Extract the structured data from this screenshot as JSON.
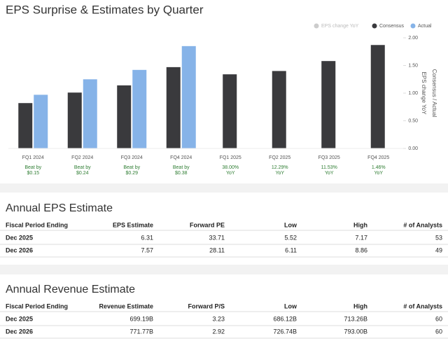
{
  "chart_data": {
    "type": "bar",
    "title": "EPS Surprise & Estimates by Quarter",
    "categories": [
      "FQ1 2024",
      "FQ2 2024",
      "FQ3 2024",
      "FQ4 2024",
      "FQ1 2025",
      "FQ2 2025",
      "FQ3 2025",
      "FQ4 2025"
    ],
    "series": [
      {
        "name": "EPS change YoY",
        "color": "#cccccc",
        "hidden": true,
        "values": [
          null,
          null,
          null,
          null,
          null,
          null,
          null,
          null
        ]
      },
      {
        "name": "Consensus",
        "color": "#3a3a3d",
        "values": [
          0.82,
          1.01,
          1.14,
          1.47,
          1.34,
          1.4,
          1.58,
          1.87
        ]
      },
      {
        "name": "Actual",
        "color": "#86b3e8",
        "values": [
          0.97,
          1.25,
          1.42,
          1.85,
          null,
          null,
          null,
          null
        ]
      }
    ],
    "annotations": [
      [
        "Beat by",
        "$0.15"
      ],
      [
        "Beat by",
        "$0.24"
      ],
      [
        "Beat by",
        "$0.29"
      ],
      [
        "Beat by",
        "$0.38"
      ],
      [
        "38.00%",
        "YoY"
      ],
      [
        "12.29%",
        "YoY"
      ],
      [
        "11.53%",
        "YoY"
      ],
      [
        "1.46%",
        "YoY"
      ]
    ],
    "ylim": [
      0,
      2
    ],
    "yticks": [
      {
        "value": 0,
        "label": "0.00"
      },
      {
        "value": 0.5,
        "label": "0.50"
      },
      {
        "value": 1,
        "label": "1.00"
      },
      {
        "value": 1.5,
        "label": "1.50"
      },
      {
        "value": 2,
        "label": "2.00"
      }
    ],
    "y_label": "EPS change YoY",
    "y2_label": "Consensus / Actual",
    "legend": "top-right"
  },
  "tables": [
    {
      "title": "Annual EPS Estimate",
      "columns": [
        "Fiscal Period Ending",
        "EPS Estimate",
        "Forward PE",
        "Low",
        "High",
        "# of Analysts"
      ],
      "rows": [
        [
          "Dec 2025",
          6.31,
          33.71,
          5.52,
          7.17,
          53
        ],
        [
          "Dec 2026",
          7.57,
          28.11,
          6.11,
          8.86,
          49
        ]
      ]
    },
    {
      "title": "Annual Revenue Estimate",
      "columns": [
        "Fiscal Period Ending",
        "Revenue Estimate",
        "Forward P/S",
        "Low",
        "High",
        "# of Analysts"
      ],
      "rows": [
        [
          "Dec 2025",
          "699.19B",
          3.23,
          "686.12B",
          "713.26B",
          60
        ],
        [
          "Dec 2026",
          "771.77B",
          2.92,
          "726.74B",
          "793.00B",
          60
        ]
      ]
    }
  ]
}
